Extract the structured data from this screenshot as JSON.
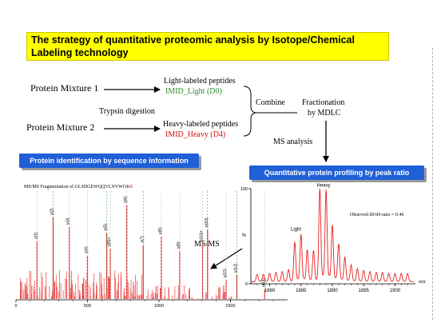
{
  "title": "The strategy of quantitative proteomic analysis by Isotope/Chemical Labeling technology",
  "workflow": {
    "mixture1": "Protein Mixture 1",
    "mixture2": "Protein Mixture 2",
    "trypsin": "Trypsin digestion",
    "light_label": "Light-labeled peptides",
    "light_reagent": "IMID_Light (D0)",
    "heavy_label": "Heavy-labeled peptides",
    "heavy_reagent": "IMID_Heavy (D4)",
    "combine": "Combine",
    "fractionation": "Fractionation",
    "by_mdlc": "by MDLC",
    "ms_analysis": "MS  analysis",
    "msms": "MS/MS"
  },
  "colors": {
    "title_bg": "#ffff00",
    "pill_bg": "#1f5fd8",
    "light_reagent": "#2e8b2e",
    "heavy_reagent": "#d01010",
    "spectrum": "#e82020"
  },
  "left_panel": {
    "heading": "Protein identification by sequence information",
    "caption_prefix": "MS/MS Fragmentation of GLSDGEWQQVLNVWGK",
    "caption_suffix": "K"
  },
  "right_panel": {
    "heading": "Quantitative protein profiling by peak ratio",
    "ratio_note": "Observed d0/d4 ratio = 0.46",
    "light_label": "Light",
    "heavy_label": "Heavy"
  },
  "chart_data": [
    {
      "type": "bar",
      "xlim": [
        0,
        1900
      ],
      "x_ticks": [
        0,
        500,
        1000,
        1500
      ],
      "x_tick_labels": [
        "0",
        "500",
        "1000",
        "1500"
      ],
      "ions": [
        {
          "label": "y(1)",
          "x": 147
        },
        {
          "label": "y(2)",
          "x": 260
        },
        {
          "label": "y(3)",
          "x": 373
        },
        {
          "label": "y(4)",
          "x": 500
        },
        {
          "label": "y(5)",
          "x": 635
        },
        {
          "label": "y(5)+",
          "x": 660
        },
        {
          "label": "y(6)",
          "x": 775
        },
        {
          "label": "y(7)",
          "x": 890
        },
        {
          "label": "y(8)",
          "x": 1017
        },
        {
          "label": "y(9)",
          "x": 1145
        },
        {
          "label": "y(10)",
          "x": 1340
        },
        {
          "label": "y(10)+",
          "x": 1305
        },
        {
          "label": "y(11)",
          "x": 1470
        },
        {
          "label": "y(12)",
          "x": 1545
        },
        {
          "label": "y(14)",
          "x": 1740
        }
      ],
      "peaks": [
        {
          "x": 147,
          "y": 48
        },
        {
          "x": 260,
          "y": 68
        },
        {
          "x": 373,
          "y": 60
        },
        {
          "x": 500,
          "y": 36
        },
        {
          "x": 635,
          "y": 55
        },
        {
          "x": 660,
          "y": 42
        },
        {
          "x": 775,
          "y": 78
        },
        {
          "x": 890,
          "y": 45
        },
        {
          "x": 1017,
          "y": 52
        },
        {
          "x": 1145,
          "y": 40
        },
        {
          "x": 1305,
          "y": 46
        },
        {
          "x": 1340,
          "y": 58
        },
        {
          "x": 1470,
          "y": 16
        },
        {
          "x": 1545,
          "y": 20
        },
        {
          "x": 1740,
          "y": 8
        }
      ]
    },
    {
      "type": "line",
      "xlim": [
        1877,
        1903
      ],
      "ylim": [
        0,
        100
      ],
      "x_ticks": [
        1880,
        1885,
        1890,
        1895,
        1900
      ],
      "y_ticks": [
        0,
        100
      ],
      "y_axis_label": "%",
      "x_axis_label": "m/z",
      "series": [
        {
          "x": [
            1878,
            1879,
            1880,
            1881,
            1882,
            1883,
            1884,
            1885,
            1886,
            1887,
            1888,
            1889,
            1890,
            1891,
            1892,
            1893,
            1894,
            1895,
            1896,
            1897,
            1898,
            1899,
            1900,
            1901,
            1902
          ],
          "y": [
            8,
            8,
            9,
            10,
            11,
            13,
            42,
            50,
            34,
            33,
            98,
            97,
            60,
            40,
            26,
            18,
            14,
            12,
            11,
            10,
            10,
            9,
            9,
            9,
            9
          ]
        }
      ]
    }
  ]
}
